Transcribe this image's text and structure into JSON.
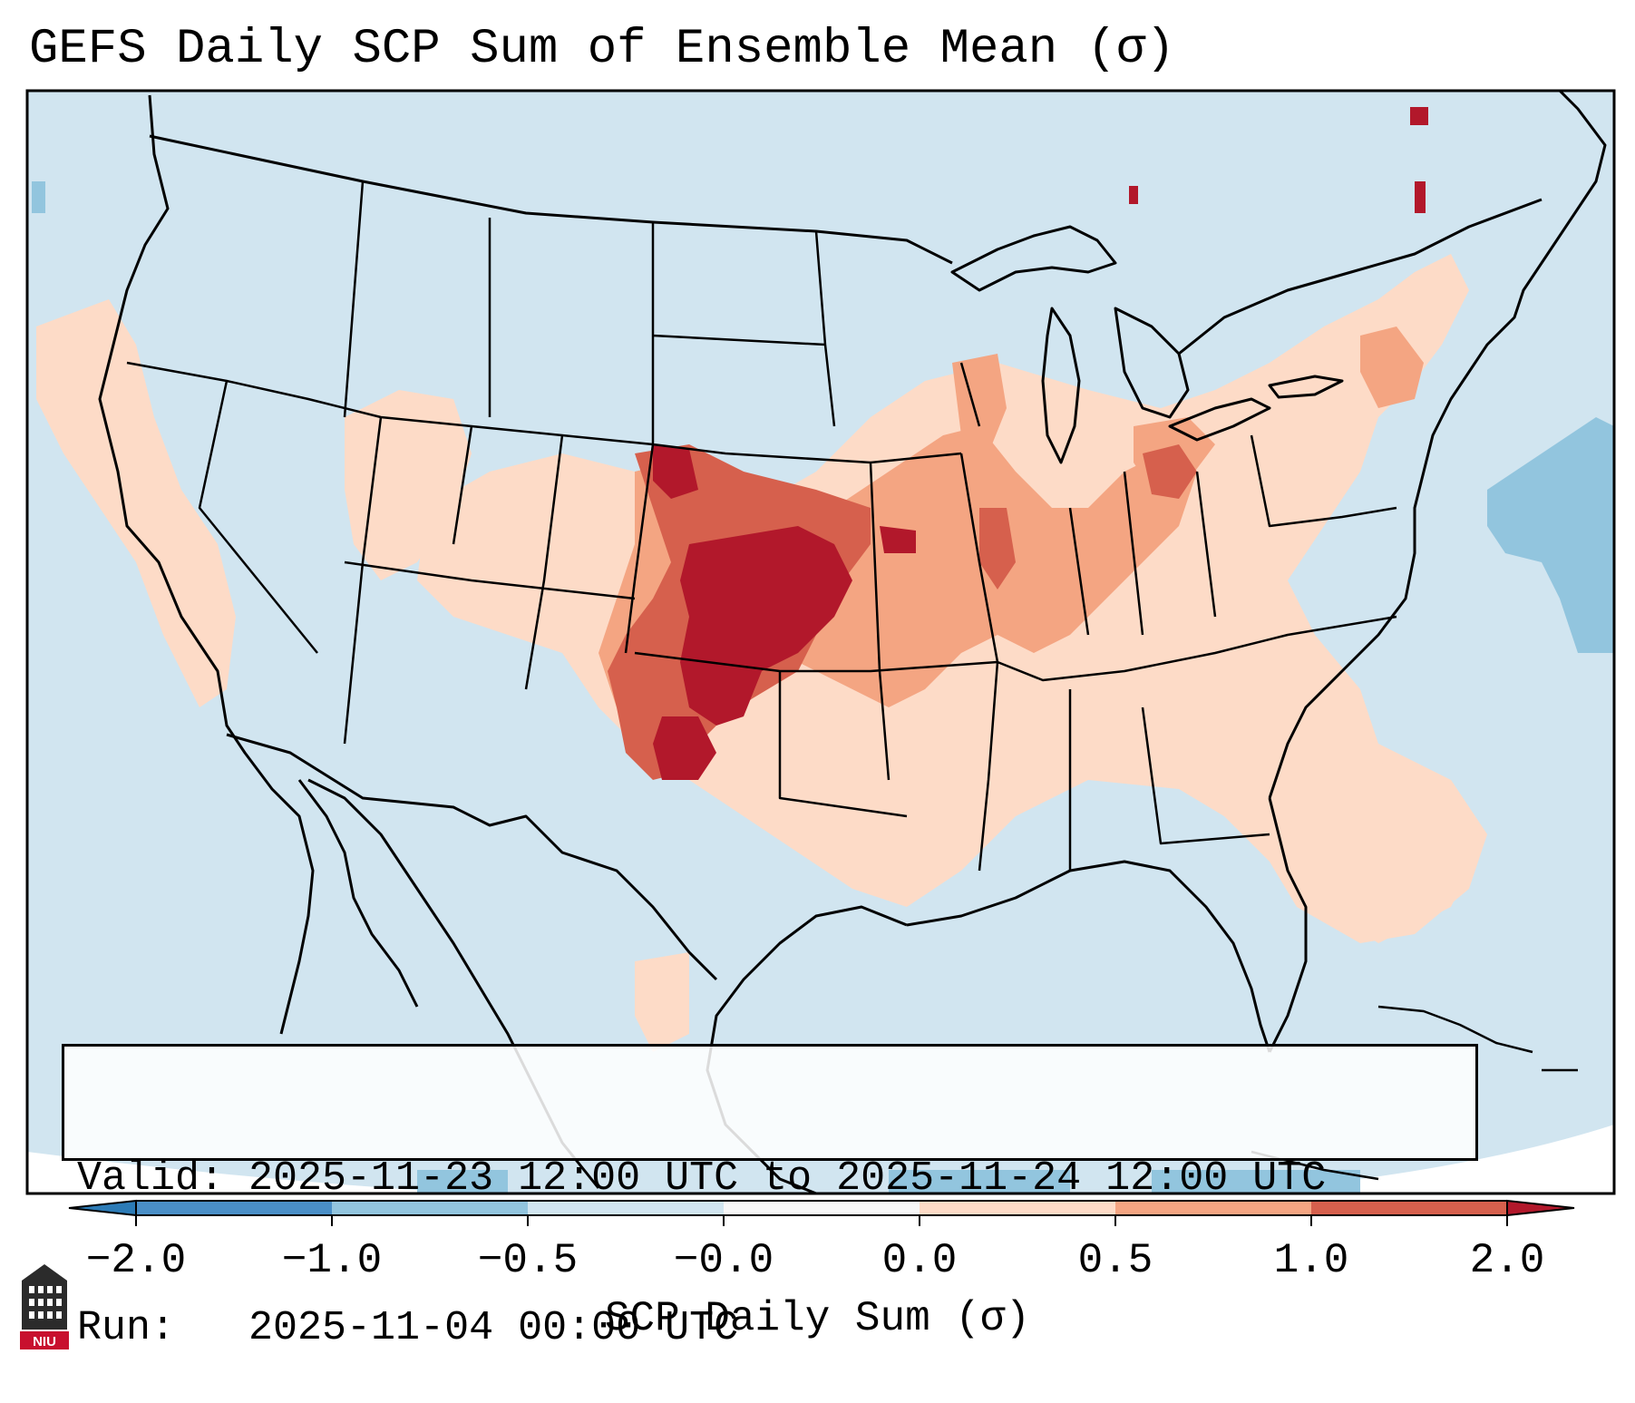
{
  "title": "GEFS Daily SCP Sum of Ensemble Mean (σ)",
  "info": {
    "valid_line": "Valid: 2025-11-23 12:00 UTC to 2025-11-24 12:00 UTC",
    "run_line": "Run:   2025-11-04 00:00 UTC"
  },
  "colorbar": {
    "label": "SCP Daily Sum (σ)",
    "ticks": [
      "−2.0",
      "−1.0",
      "−0.5",
      "−0.0",
      "0.0",
      "0.5",
      "1.0",
      "2.0"
    ],
    "colors": [
      "#2c7bb6",
      "#4a8fc7",
      "#92c5de",
      "#d1e5f0",
      "#f7f7f7",
      "#fddbc7",
      "#f4a582",
      "#d6604d",
      "#b2182b"
    ],
    "extend": "both"
  },
  "map": {
    "background_color": "#d1e5f0",
    "max_color": "#b2182b",
    "high_color": "#d6604d",
    "mid_color": "#f4a582",
    "low_color": "#fddbc7",
    "negative_color": "#92c5de"
  },
  "logo": {
    "text": "NIU"
  }
}
